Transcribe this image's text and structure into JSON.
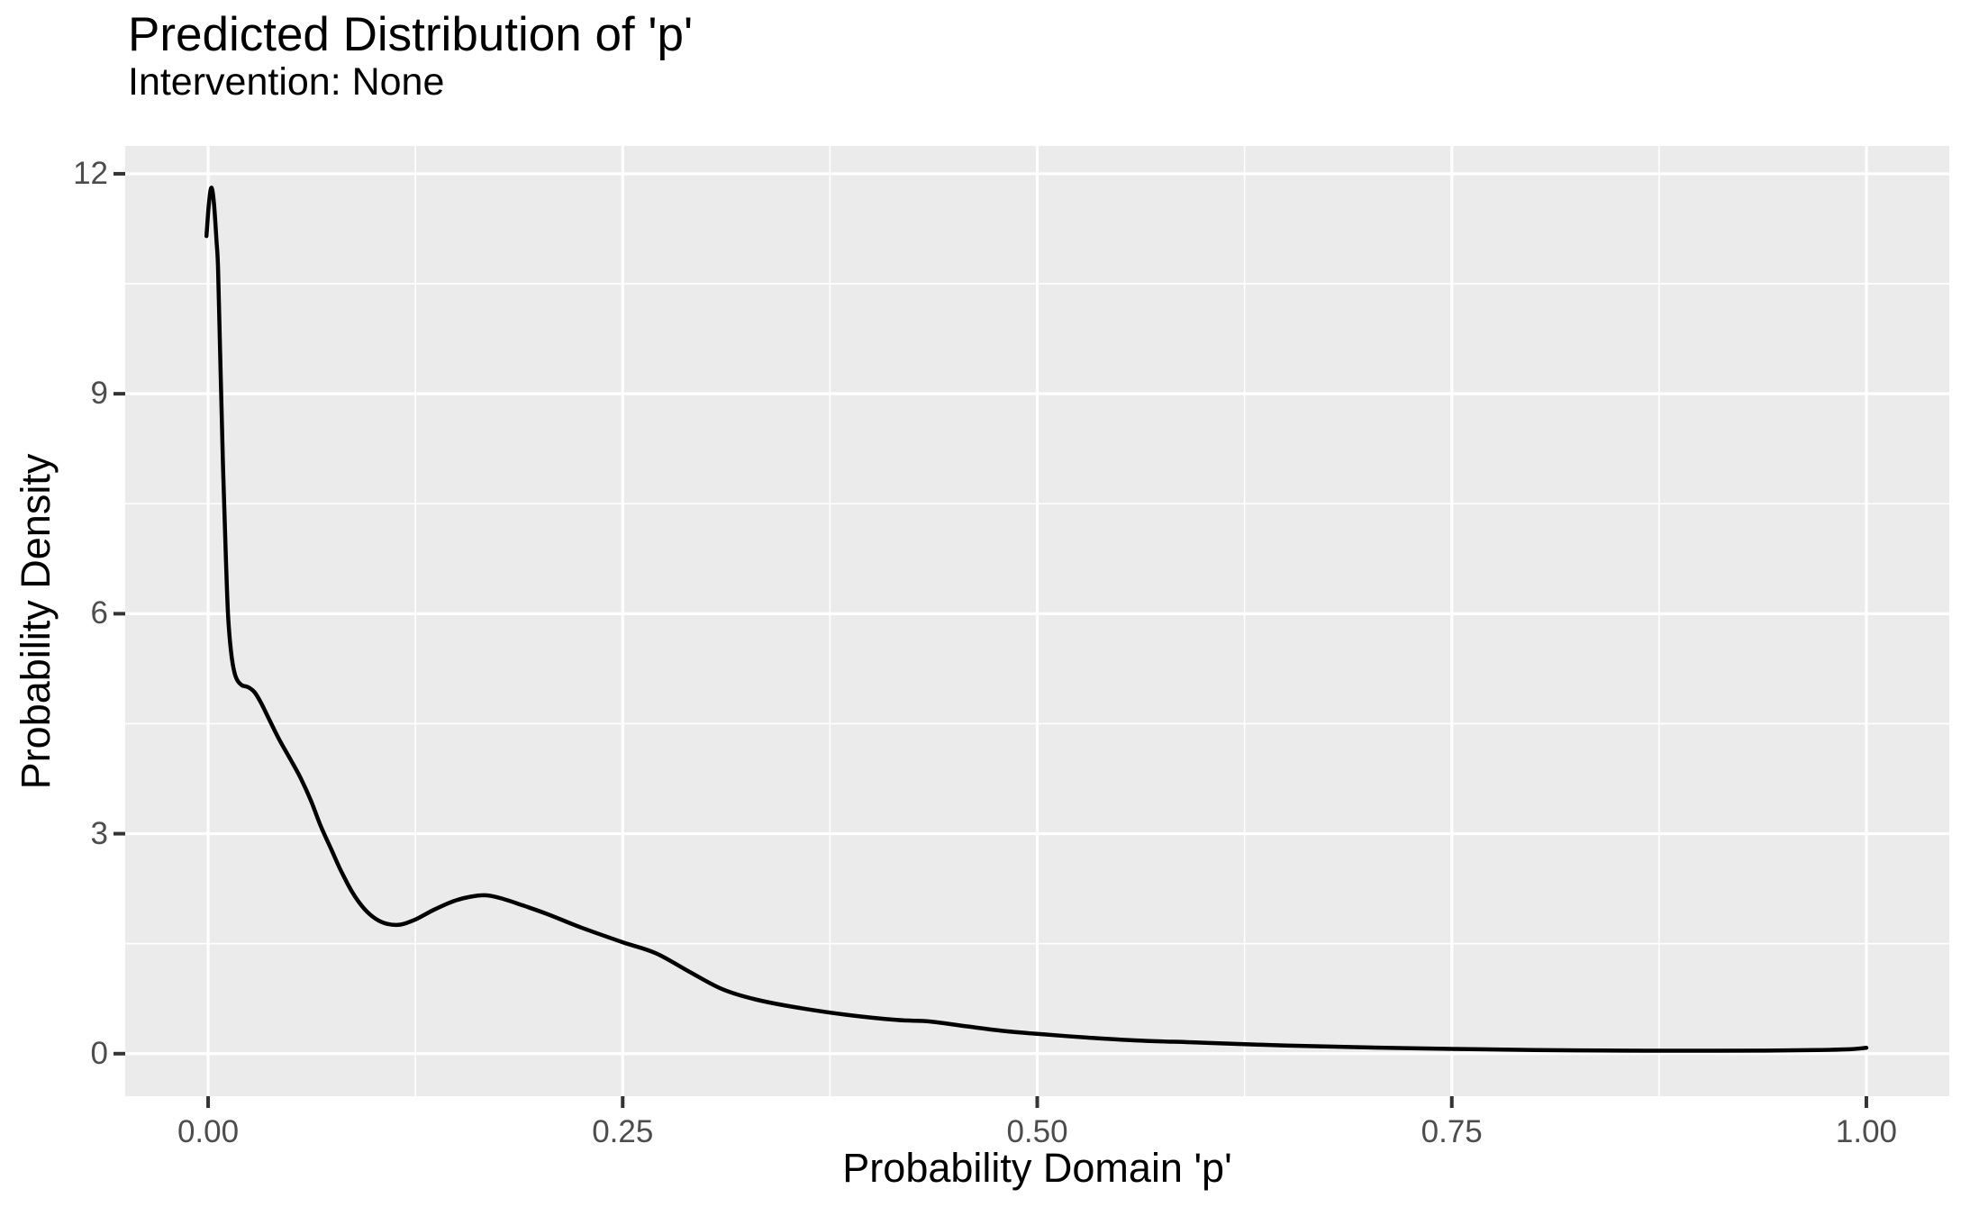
{
  "chart_data": {
    "type": "line",
    "subtype": "density-curve",
    "title": "Predicted Distribution of 'p'",
    "subtitle": "Intervention: None",
    "xlabel": "Probability Domain 'p'",
    "ylabel": "Probability Density",
    "xlim": [
      -0.05,
      1.05
    ],
    "ylim": [
      -0.58,
      12.38
    ],
    "grid": true,
    "legend": "none",
    "x_ticks": [
      {
        "value": 0.0,
        "label": "0.00"
      },
      {
        "value": 0.25,
        "label": "0.25"
      },
      {
        "value": 0.5,
        "label": "0.50"
      },
      {
        "value": 0.75,
        "label": "0.75"
      },
      {
        "value": 1.0,
        "label": "1.00"
      }
    ],
    "y_ticks": [
      {
        "value": 0,
        "label": "0"
      },
      {
        "value": 3,
        "label": "3"
      },
      {
        "value": 6,
        "label": "6"
      },
      {
        "value": 9,
        "label": "9"
      },
      {
        "value": 12,
        "label": "12"
      }
    ],
    "x_minor": [
      0.125,
      0.375,
      0.625,
      0.875
    ],
    "y_minor": [
      1.5,
      4.5,
      7.5,
      10.5
    ],
    "series": [
      {
        "name": "density",
        "points": [
          [
            -0.001,
            11.15
          ],
          [
            0.0005,
            11.6
          ],
          [
            0.002,
            11.81
          ],
          [
            0.0035,
            11.6
          ],
          [
            0.005,
            11.1
          ],
          [
            0.006,
            10.7
          ],
          [
            0.0075,
            9.3
          ],
          [
            0.009,
            8.0
          ],
          [
            0.0105,
            6.9
          ],
          [
            0.012,
            6.0
          ],
          [
            0.014,
            5.45
          ],
          [
            0.0165,
            5.15
          ],
          [
            0.02,
            5.03
          ],
          [
            0.024,
            5.0
          ],
          [
            0.028,
            4.93
          ],
          [
            0.032,
            4.78
          ],
          [
            0.037,
            4.55
          ],
          [
            0.043,
            4.28
          ],
          [
            0.05,
            4.0
          ],
          [
            0.056,
            3.75
          ],
          [
            0.062,
            3.45
          ],
          [
            0.068,
            3.1
          ],
          [
            0.074,
            2.8
          ],
          [
            0.08,
            2.5
          ],
          [
            0.087,
            2.2
          ],
          [
            0.094,
            1.98
          ],
          [
            0.101,
            1.84
          ],
          [
            0.108,
            1.77
          ],
          [
            0.116,
            1.76
          ],
          [
            0.125,
            1.83
          ],
          [
            0.136,
            1.96
          ],
          [
            0.148,
            2.08
          ],
          [
            0.158,
            2.14
          ],
          [
            0.168,
            2.16
          ],
          [
            0.178,
            2.11
          ],
          [
            0.19,
            2.02
          ],
          [
            0.205,
            1.9
          ],
          [
            0.225,
            1.72
          ],
          [
            0.25,
            1.52
          ],
          [
            0.27,
            1.37
          ],
          [
            0.29,
            1.12
          ],
          [
            0.31,
            0.88
          ],
          [
            0.33,
            0.74
          ],
          [
            0.355,
            0.63
          ],
          [
            0.385,
            0.53
          ],
          [
            0.415,
            0.46
          ],
          [
            0.435,
            0.44
          ],
          [
            0.455,
            0.38
          ],
          [
            0.48,
            0.31
          ],
          [
            0.5,
            0.27
          ],
          [
            0.53,
            0.22
          ],
          [
            0.56,
            0.18
          ],
          [
            0.6,
            0.15
          ],
          [
            0.65,
            0.11
          ],
          [
            0.7,
            0.085
          ],
          [
            0.75,
            0.065
          ],
          [
            0.8,
            0.05
          ],
          [
            0.85,
            0.042
          ],
          [
            0.9,
            0.04
          ],
          [
            0.94,
            0.042
          ],
          [
            0.97,
            0.05
          ],
          [
            0.99,
            0.06
          ],
          [
            1.0,
            0.08
          ]
        ]
      }
    ],
    "colors": {
      "panel_background": "#EBEBEB",
      "grid_major": "#FFFFFF",
      "grid_minor": "#FFFFFF",
      "curve": "#000000",
      "tick_mark": "#333333",
      "tick_text": "#4D4D4D",
      "title_text": "#000000",
      "page_background": "#FFFFFF"
    }
  }
}
